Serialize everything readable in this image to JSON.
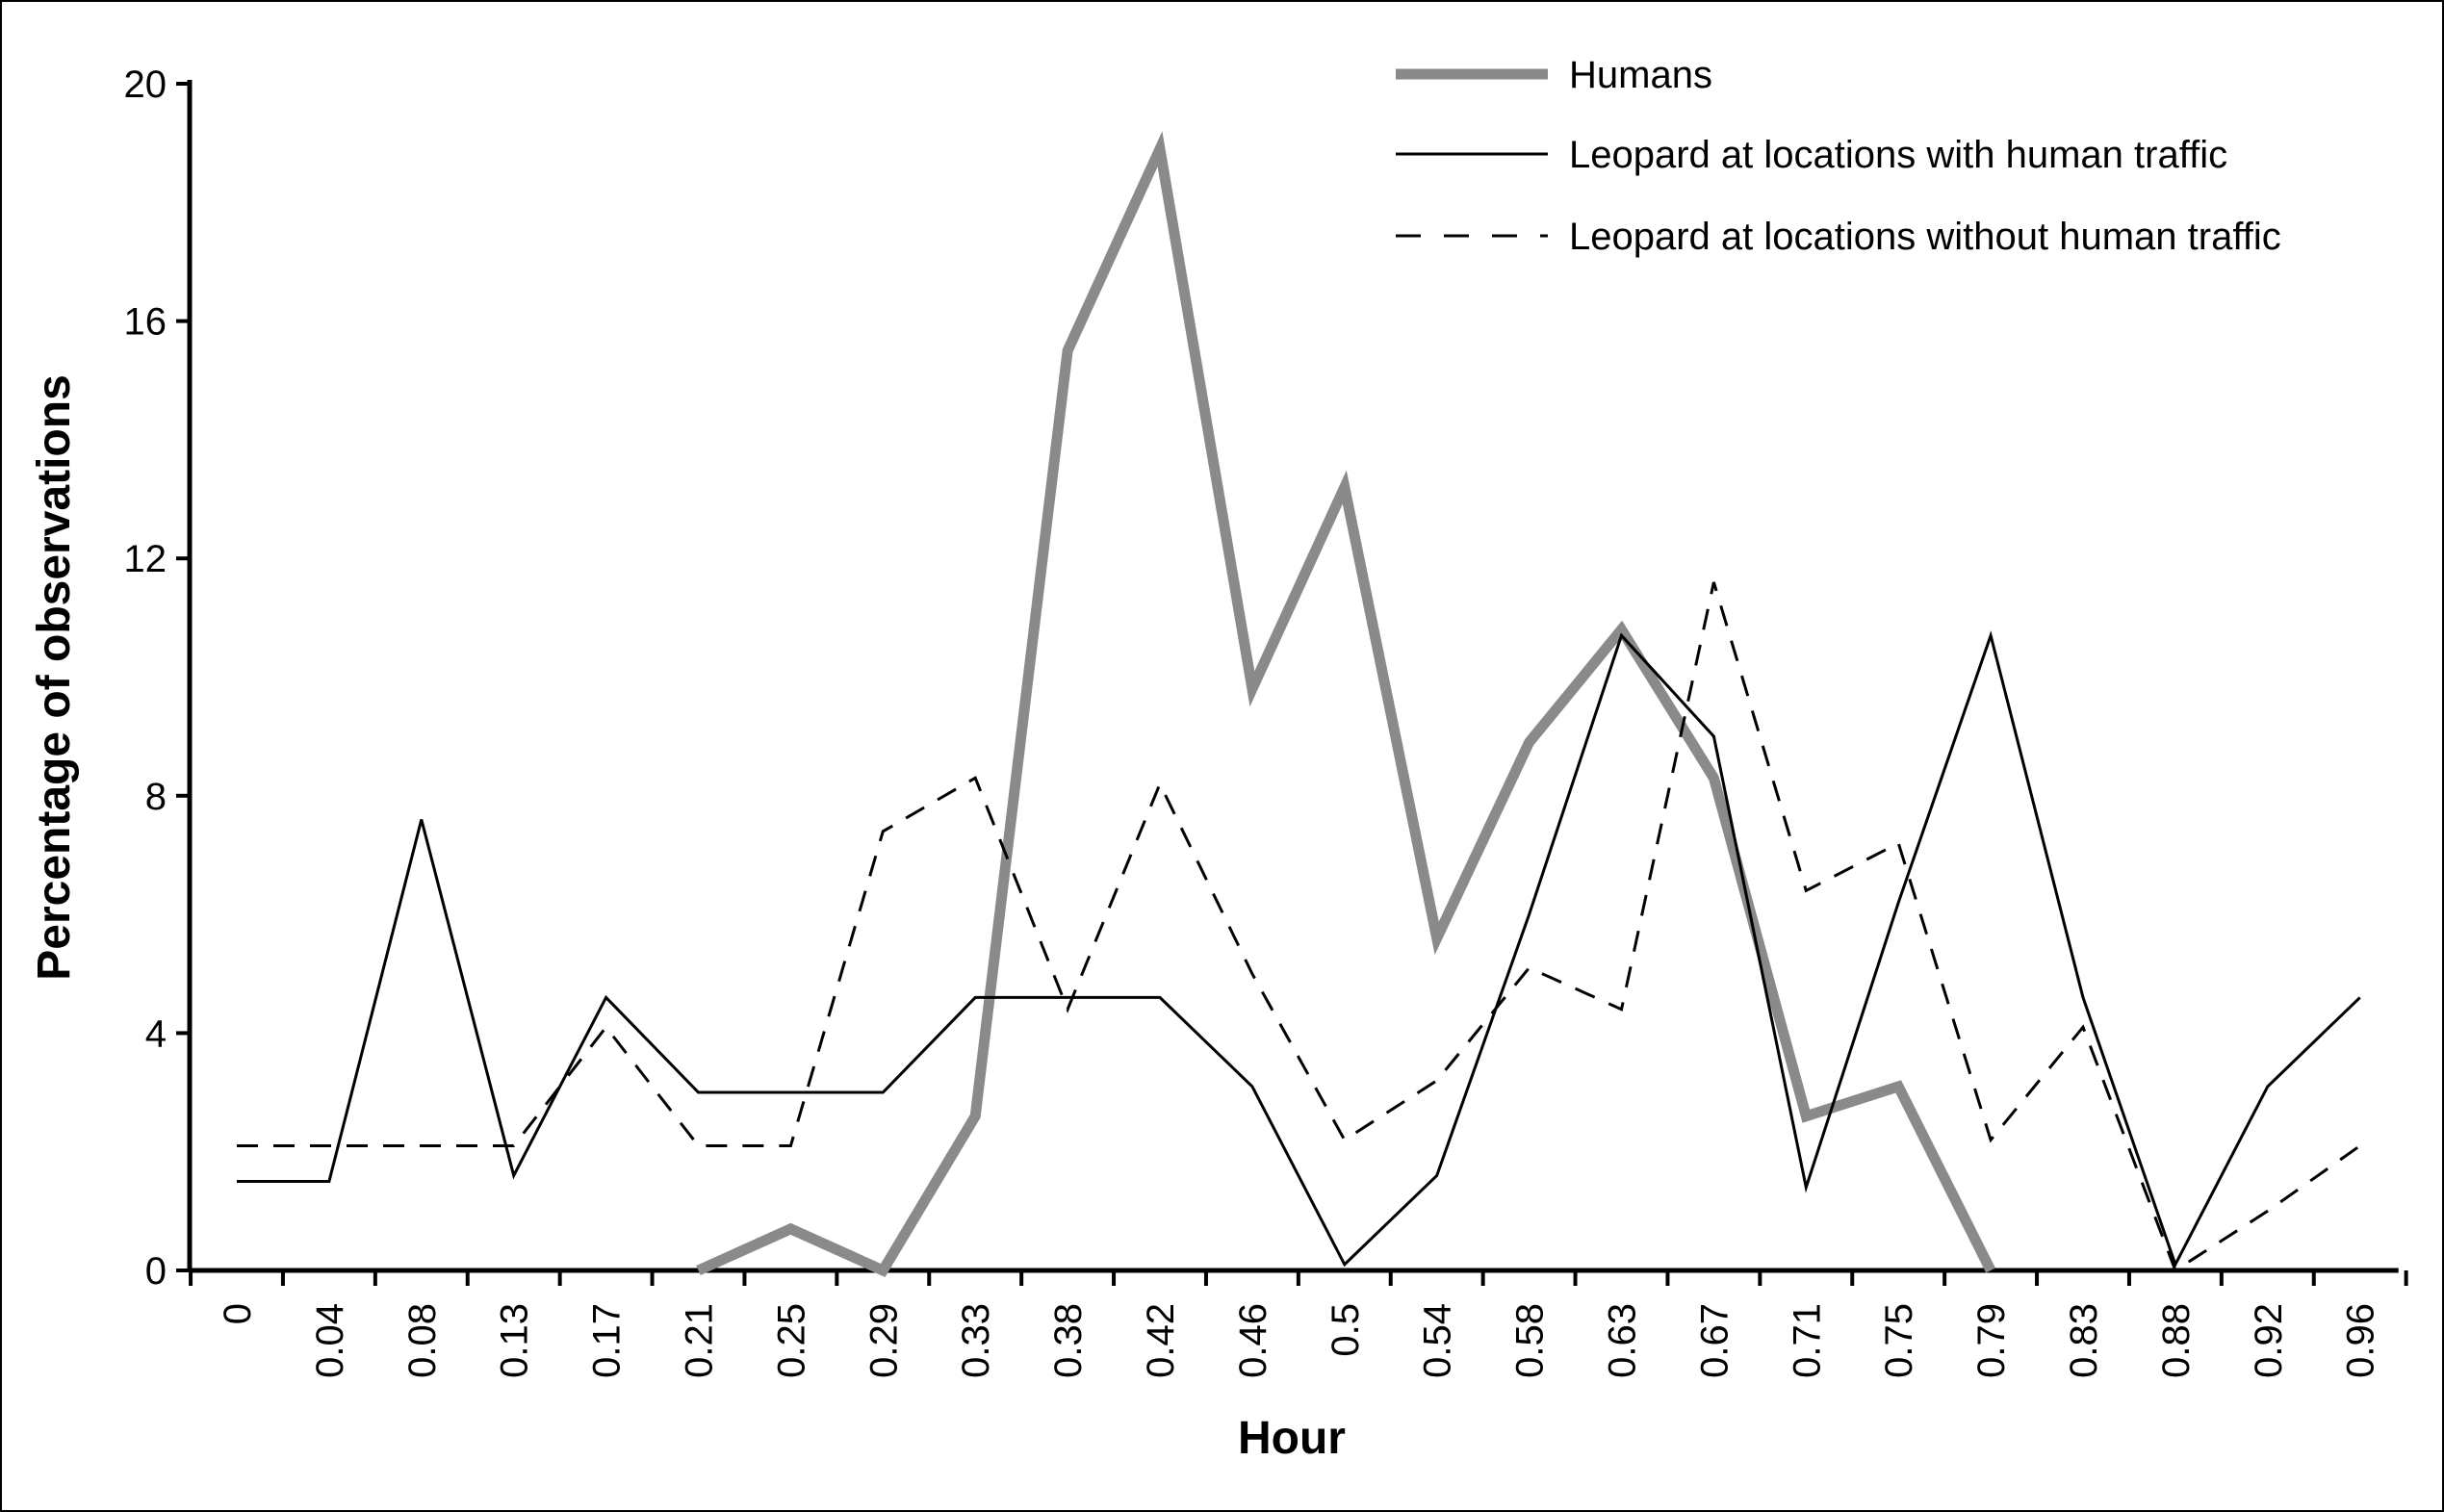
{
  "chart_data": {
    "type": "line",
    "title": "",
    "xlabel": "Hour",
    "ylabel": "Percentage of observations",
    "ylim": [
      0,
      20
    ],
    "yticks": [
      0,
      4,
      8,
      12,
      16,
      20
    ],
    "categories": [
      "0",
      "0.04",
      "0.08",
      "0.13",
      "0.17",
      "0.21",
      "0.25",
      "0.29",
      "0.33",
      "0.38",
      "0.42",
      "0.46",
      "0.5",
      "0.54",
      "0.58",
      "0.63",
      "0.67",
      "0.71",
      "0.75",
      "0.79",
      "0.83",
      "0.88",
      "0.92",
      "0.96"
    ],
    "legend_position": "top-right",
    "series": [
      {
        "name": "Humans",
        "style": "thick-solid",
        "color": "#8a8a8a",
        "values": [
          null,
          null,
          null,
          null,
          null,
          0,
          0.7,
          0,
          2.6,
          15.5,
          18.9,
          9.8,
          13.2,
          5.6,
          8.9,
          10.8,
          8.3,
          2.6,
          3.1,
          0,
          null,
          null,
          null,
          null
        ]
      },
      {
        "name": "Leopard at locations with human traffic",
        "style": "thin-solid",
        "color": "#000000",
        "values": [
          1.5,
          1.5,
          7.6,
          1.6,
          4.6,
          3.0,
          3.0,
          3.0,
          4.6,
          4.6,
          4.6,
          3.1,
          0.1,
          1.6,
          6.0,
          10.7,
          9.0,
          1.4,
          6.2,
          10.7,
          4.6,
          0.1,
          3.1,
          4.6
        ]
      },
      {
        "name": "Leopard at locations without human traffic",
        "style": "dashed",
        "color": "#000000",
        "values": [
          2.1,
          2.1,
          2.1,
          2.1,
          4.1,
          2.1,
          2.1,
          7.4,
          8.3,
          4.4,
          8.2,
          5.0,
          2.2,
          3.2,
          5.1,
          4.4,
          11.6,
          6.4,
          7.2,
          2.2,
          4.1,
          0,
          1.0,
          2.1
        ]
      }
    ]
  }
}
